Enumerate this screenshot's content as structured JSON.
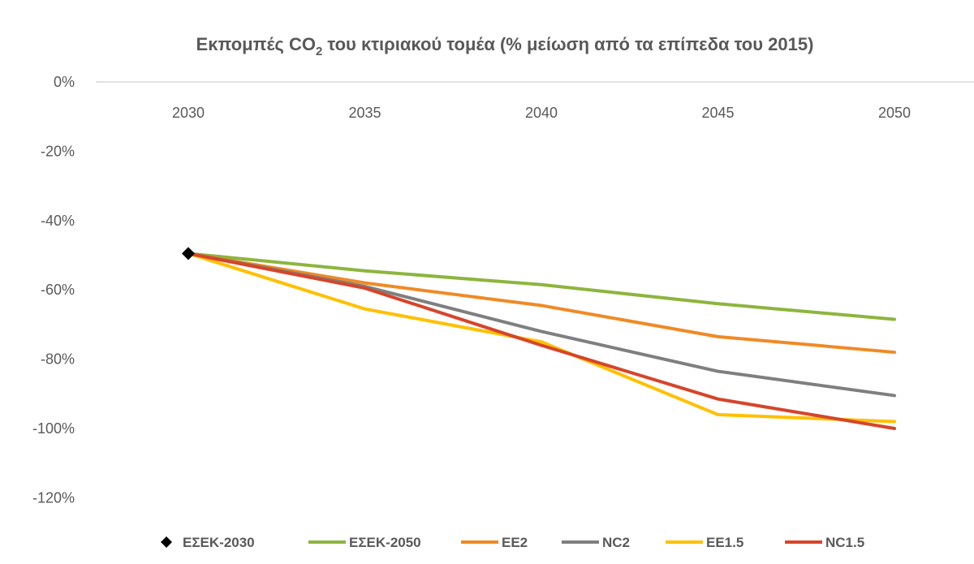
{
  "chart_data": {
    "type": "line",
    "title": "Εκπομπές CO₂ του κτιριακού τομέα (% μείωση από τα επίπεδα του 2015)",
    "title_parts": {
      "before": "Εκπομπές CO",
      "subscript": "2",
      "after": " του κτιριακού τομέα (% μείωση από τα επίπεδα του 2015)"
    },
    "xlabel": "",
    "ylabel": "",
    "categories": [
      "2030",
      "2035",
      "2040",
      "2045",
      "2050"
    ],
    "y_ticks": [
      "0%",
      "-20%",
      "-40%",
      "-60%",
      "-80%",
      "-100%",
      "-120%"
    ],
    "ylim": [
      -130,
      0
    ],
    "grid": false,
    "legend_position": "bottom",
    "series": [
      {
        "name": "ΕΣΕΚ-2030",
        "marker": "diamond",
        "color": "#000000",
        "values": [
          -49.5,
          null,
          null,
          null,
          null
        ]
      },
      {
        "name": "ΕΣΕΚ-2050",
        "color": "#8DB53D",
        "values": [
          -49.5,
          -54.5,
          -58.5,
          -64,
          -68.5
        ]
      },
      {
        "name": "EE2",
        "color": "#F08A24",
        "values": [
          -49.5,
          -58,
          -64.5,
          -73.5,
          -78
        ]
      },
      {
        "name": "NC2",
        "color": "#7F7F7F",
        "values": [
          -49.5,
          -59,
          -72,
          -83.5,
          -90.5
        ]
      },
      {
        "name": "EE1.5",
        "color": "#FFC000",
        "values": [
          -49.5,
          -65.5,
          -75,
          -96,
          -98
        ]
      },
      {
        "name": "NC1.5",
        "color": "#D6452A",
        "values": [
          -49.5,
          -59.5,
          -76,
          -91.5,
          -100
        ]
      }
    ]
  }
}
